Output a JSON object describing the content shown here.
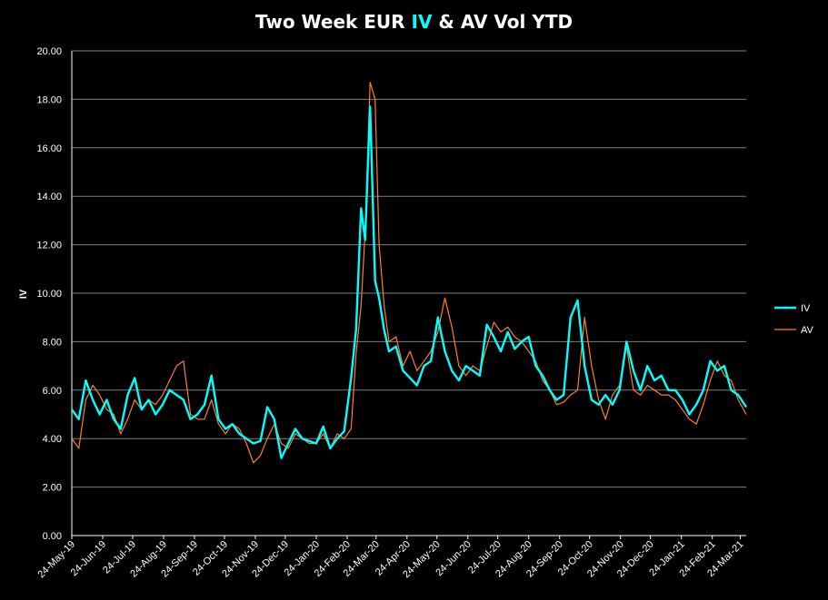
{
  "chart_data": {
    "type": "line",
    "title_parts": [
      "Two Week EUR ",
      "IV",
      " & AV Vol YTD"
    ],
    "ylabel": "IV",
    "ylim": [
      0,
      20
    ],
    "y_ticks": [
      "0.00",
      "2.00",
      "4.00",
      "6.00",
      "8.00",
      "10.00",
      "12.00",
      "14.00",
      "16.00",
      "18.00",
      "20.00"
    ],
    "x_ticks": [
      "24-May-19",
      "24-Jun-19",
      "24-Jul-19",
      "24-Aug-19",
      "24-Sep-19",
      "24-Oct-19",
      "24-Nov-19",
      "24-Dec-19",
      "24-Jan-20",
      "24-Feb-20",
      "24-Mar-20",
      "24-Apr-20",
      "24-May-20",
      "24-Jun-20",
      "24-Jul-20",
      "24-Aug-20",
      "24-Sep-20",
      "24-Oct-20",
      "24-Nov-20",
      "24-Dec-20",
      "24-Jan-21",
      "24-Feb-21",
      "24-Mar-21"
    ],
    "x_range": [
      "24-May-19",
      "30-Mar-21"
    ],
    "grid": "horizontal",
    "legend_position": "right",
    "series": [
      {
        "name": "IV",
        "color": "#00ffff",
        "x": [
          "24-May-19",
          "31-May-19",
          "07-Jun-19",
          "14-Jun-19",
          "21-Jun-19",
          "28-Jun-19",
          "05-Jul-19",
          "12-Jul-19",
          "19-Jul-19",
          "26-Jul-19",
          "02-Aug-19",
          "09-Aug-19",
          "16-Aug-19",
          "23-Aug-19",
          "30-Aug-19",
          "06-Sep-19",
          "13-Sep-19",
          "20-Sep-19",
          "27-Sep-19",
          "04-Oct-19",
          "11-Oct-19",
          "18-Oct-19",
          "25-Oct-19",
          "01-Nov-19",
          "08-Nov-19",
          "15-Nov-19",
          "22-Nov-19",
          "29-Nov-19",
          "06-Dec-19",
          "13-Dec-19",
          "20-Dec-19",
          "27-Dec-19",
          "03-Jan-20",
          "10-Jan-20",
          "17-Jan-20",
          "24-Jan-20",
          "31-Jan-20",
          "07-Feb-20",
          "14-Feb-20",
          "21-Feb-20",
          "28-Feb-20",
          "04-Mar-20",
          "09-Mar-20",
          "13-Mar-20",
          "18-Mar-20",
          "23-Mar-20",
          "27-Mar-20",
          "01-Apr-20",
          "06-Apr-20",
          "13-Apr-20",
          "20-Apr-20",
          "27-Apr-20",
          "04-May-20",
          "11-May-20",
          "18-May-20",
          "25-May-20",
          "01-Jun-20",
          "08-Jun-20",
          "15-Jun-20",
          "22-Jun-20",
          "29-Jun-20",
          "06-Jul-20",
          "13-Jul-20",
          "20-Jul-20",
          "27-Jul-20",
          "03-Aug-20",
          "10-Aug-20",
          "17-Aug-20",
          "24-Aug-20",
          "31-Aug-20",
          "07-Sep-20",
          "14-Sep-20",
          "21-Sep-20",
          "28-Sep-20",
          "05-Oct-20",
          "12-Oct-20",
          "19-Oct-20",
          "26-Oct-20",
          "02-Nov-20",
          "09-Nov-20",
          "16-Nov-20",
          "23-Nov-20",
          "30-Nov-20",
          "07-Dec-20",
          "14-Dec-20",
          "21-Dec-20",
          "28-Dec-20",
          "04-Jan-21",
          "11-Jan-21",
          "18-Jan-21",
          "25-Jan-21",
          "01-Feb-21",
          "08-Feb-21",
          "15-Feb-21",
          "22-Feb-21",
          "01-Mar-21",
          "08-Mar-21",
          "15-Mar-21",
          "22-Mar-21",
          "30-Mar-21"
        ],
        "values": [
          5.2,
          4.8,
          6.4,
          5.6,
          5.0,
          5.6,
          4.8,
          4.4,
          5.8,
          6.5,
          5.2,
          5.6,
          5.0,
          5.4,
          6.0,
          5.8,
          5.6,
          4.8,
          5.0,
          5.4,
          6.6,
          4.8,
          4.4,
          4.6,
          4.2,
          4.0,
          3.8,
          3.9,
          5.3,
          4.8,
          3.2,
          3.8,
          4.4,
          4.0,
          3.9,
          3.8,
          4.5,
          3.6,
          4.0,
          4.3,
          6.5,
          8.5,
          13.5,
          12.2,
          17.7,
          10.5,
          9.8,
          8.5,
          7.6,
          7.8,
          6.8,
          6.5,
          6.2,
          7.0,
          7.2,
          9.0,
          7.6,
          6.8,
          6.4,
          7.0,
          6.8,
          6.6,
          8.7,
          8.2,
          7.6,
          8.4,
          7.7,
          8.0,
          8.2,
          7.0,
          6.6,
          6.0,
          5.6,
          5.8,
          9.0,
          9.7,
          7.0,
          5.6,
          5.4,
          5.8,
          5.4,
          6.0,
          8.0,
          6.8,
          6.0,
          7.0,
          6.4,
          6.6,
          6.0,
          6.0,
          5.6,
          5.0,
          5.4,
          6.0,
          7.2,
          6.8,
          7.0,
          6.0,
          5.8,
          5.3
        ]
      },
      {
        "name": "AV",
        "color": "#ff7f27",
        "x": [
          "24-May-19",
          "31-May-19",
          "07-Jun-19",
          "14-Jun-19",
          "21-Jun-19",
          "28-Jun-19",
          "05-Jul-19",
          "12-Jul-19",
          "19-Jul-19",
          "26-Jul-19",
          "02-Aug-19",
          "09-Aug-19",
          "16-Aug-19",
          "23-Aug-19",
          "30-Aug-19",
          "06-Sep-19",
          "13-Sep-19",
          "20-Sep-19",
          "27-Sep-19",
          "04-Oct-19",
          "11-Oct-19",
          "18-Oct-19",
          "25-Oct-19",
          "01-Nov-19",
          "08-Nov-19",
          "15-Nov-19",
          "22-Nov-19",
          "29-Nov-19",
          "06-Dec-19",
          "13-Dec-19",
          "20-Dec-19",
          "27-Dec-19",
          "03-Jan-20",
          "10-Jan-20",
          "17-Jan-20",
          "24-Jan-20",
          "31-Jan-20",
          "07-Feb-20",
          "14-Feb-20",
          "21-Feb-20",
          "28-Feb-20",
          "04-Mar-20",
          "09-Mar-20",
          "13-Mar-20",
          "18-Mar-20",
          "23-Mar-20",
          "27-Mar-20",
          "01-Apr-20",
          "06-Apr-20",
          "13-Apr-20",
          "20-Apr-20",
          "27-Apr-20",
          "04-May-20",
          "11-May-20",
          "18-May-20",
          "25-May-20",
          "01-Jun-20",
          "08-Jun-20",
          "15-Jun-20",
          "22-Jun-20",
          "29-Jun-20",
          "06-Jul-20",
          "13-Jul-20",
          "20-Jul-20",
          "27-Jul-20",
          "03-Aug-20",
          "10-Aug-20",
          "17-Aug-20",
          "24-Aug-20",
          "31-Aug-20",
          "07-Sep-20",
          "14-Sep-20",
          "21-Sep-20",
          "28-Sep-20",
          "05-Oct-20",
          "12-Oct-20",
          "19-Oct-20",
          "26-Oct-20",
          "02-Nov-20",
          "09-Nov-20",
          "16-Nov-20",
          "23-Nov-20",
          "30-Nov-20",
          "07-Dec-20",
          "14-Dec-20",
          "21-Dec-20",
          "28-Dec-20",
          "04-Jan-21",
          "11-Jan-21",
          "18-Jan-21",
          "25-Jan-21",
          "01-Feb-21",
          "08-Feb-21",
          "15-Feb-21",
          "22-Feb-21",
          "01-Mar-21",
          "08-Mar-21",
          "15-Mar-21",
          "22-Mar-21",
          "30-Mar-21"
        ],
        "values": [
          4.0,
          3.6,
          5.6,
          6.2,
          5.8,
          5.2,
          5.0,
          4.2,
          4.8,
          5.6,
          5.2,
          5.6,
          5.4,
          5.8,
          6.4,
          7.0,
          7.2,
          5.0,
          4.8,
          4.8,
          5.6,
          4.6,
          4.2,
          4.6,
          4.4,
          3.8,
          3.0,
          3.3,
          4.0,
          4.6,
          3.8,
          3.6,
          4.2,
          4.0,
          3.8,
          3.8,
          4.2,
          3.6,
          4.2,
          4.0,
          4.4,
          7.5,
          9.5,
          12.5,
          18.7,
          18.0,
          12.0,
          9.5,
          8.0,
          8.2,
          7.0,
          7.6,
          6.8,
          7.2,
          7.6,
          8.4,
          9.8,
          8.6,
          7.0,
          6.6,
          7.0,
          6.8,
          7.8,
          8.8,
          8.4,
          8.6,
          8.2,
          8.0,
          7.6,
          7.2,
          6.4,
          6.0,
          5.4,
          5.5,
          5.8,
          6.0,
          9.0,
          7.0,
          5.6,
          4.8,
          5.8,
          6.2,
          7.8,
          6.0,
          5.8,
          6.2,
          6.0,
          5.8,
          5.8,
          5.6,
          5.2,
          4.8,
          4.6,
          5.4,
          6.4,
          7.2,
          6.6,
          6.4,
          5.6,
          5.0
        ]
      }
    ]
  }
}
